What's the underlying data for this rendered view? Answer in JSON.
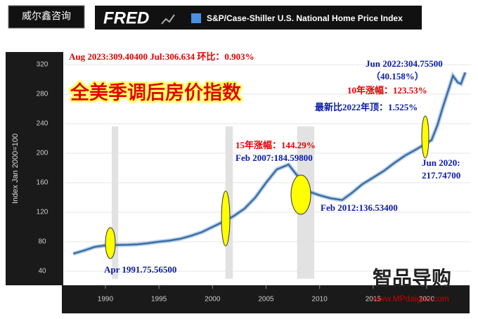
{
  "header": {
    "brand": "威尔鑫咨询",
    "logo": "FRED",
    "series_title": "S&P/Case-Shiller U.S. National Home Price Index"
  },
  "chart_data": {
    "type": "line",
    "title": "全美季调后房价指数",
    "y_label": "Index Jan 2000=100",
    "x": [
      1987,
      1988,
      1989,
      1990,
      1991.25,
      1992,
      1993,
      1994,
      1995,
      1996,
      1997,
      1998,
      1999,
      2000,
      2001,
      2002,
      2003,
      2004,
      2005,
      2006,
      2007.1,
      2008,
      2009,
      2010,
      2011,
      2012.1,
      2013,
      2014,
      2015,
      2016,
      2017,
      2018,
      2019,
      2020.45,
      2021,
      2021.5,
      2022.45,
      2022.9,
      2023.2,
      2023.6
    ],
    "series": [
      {
        "name": "S&P/Case-Shiller U.S. National Home Price Index",
        "color": "#3b6ea5",
        "values": [
          63.7,
          68,
          73,
          75,
          75.6,
          75.8,
          76.5,
          78,
          80,
          81.5,
          84,
          88,
          93,
          100,
          107,
          115,
          125,
          140,
          160,
          178,
          184.6,
          168,
          148,
          143,
          139,
          136.5,
          146,
          158,
          167,
          176,
          187,
          197,
          205,
          217.7,
          238,
          262,
          304.8,
          296,
          294,
          309.4
        ]
      }
    ],
    "recessions": [
      [
        1990.6,
        1991.2
      ],
      [
        2001.2,
        2001.9
      ],
      [
        2007.9,
        2009.5
      ]
    ],
    "xlim": [
      1986.5,
      2024
    ],
    "xticks": [
      1990,
      1995,
      2000,
      2005,
      2010,
      2015,
      2020
    ],
    "ylim": [
      30,
      330
    ],
    "yticks": [
      40,
      80,
      120,
      160,
      200,
      240,
      280,
      320
    ],
    "grid": true,
    "annotations": [
      {
        "text": "Aug 2023:309.40400  Jul:306.634  环比：0.903%",
        "color": "#e00000"
      },
      {
        "text": "Jun 2022:304.75500",
        "color": "#0a1aa8"
      },
      {
        "text": "（40.158%）",
        "color": "#0a1aa8"
      },
      {
        "text": "10年涨幅：123.53%",
        "color": "#e00000"
      },
      {
        "text": "最新比2022年顶：1.525%",
        "color": "#0a1aa8"
      },
      {
        "text": "15年涨幅：144.29%",
        "color": "#e00000"
      },
      {
        "text": "Feb 2007:184.59800",
        "color": "#0a1aa8"
      },
      {
        "text": "Jun 2020:",
        "color": "#0a1aa8"
      },
      {
        "text": "217.74700",
        "color": "#0a1aa8"
      },
      {
        "text": "Feb 2012:136.53400",
        "color": "#0a1aa8"
      },
      {
        "text": "Apr 1991.75.56500",
        "color": "#0a1aa8"
      }
    ],
    "watermark": "www.MPdaigou.com",
    "watermark_logo": "智品导购"
  }
}
